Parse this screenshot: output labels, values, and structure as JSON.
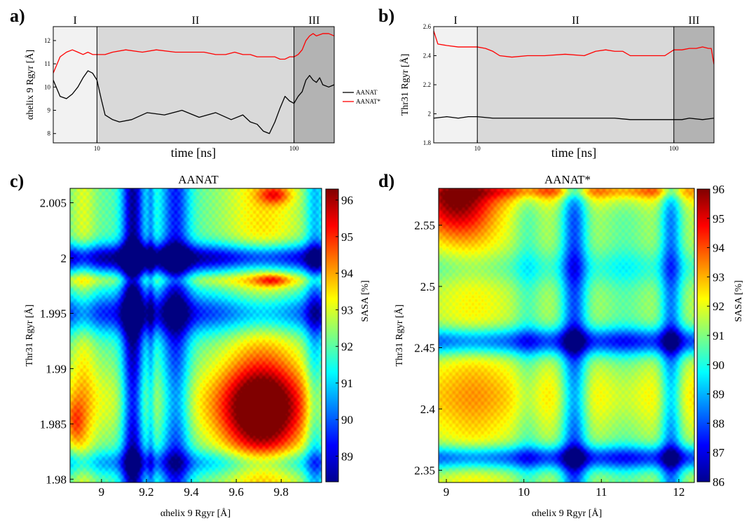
{
  "panels": {
    "a": {
      "letter": "a)"
    },
    "b": {
      "letter": "b)"
    },
    "c": {
      "letter": "c)"
    },
    "d": {
      "letter": "d)"
    }
  },
  "chart_data": [
    {
      "id": "a",
      "type": "line",
      "xlabel": "time [ns]",
      "ylabel": "αhelix 9 Rgyr [Å]",
      "xscale": "log",
      "xlim": [
        6,
        160
      ],
      "ylim": [
        7.6,
        12.6
      ],
      "xticks": [
        10,
        100
      ],
      "yticks": [
        8,
        9,
        10,
        11,
        12
      ],
      "regions": [
        {
          "label": "I",
          "from": 6,
          "to": 10,
          "color": "#f2f2f2"
        },
        {
          "label": "II",
          "from": 10,
          "to": 100,
          "color": "#d9d9d9"
        },
        {
          "label": "III",
          "from": 100,
          "to": 160,
          "color": "#b3b3b3"
        }
      ],
      "legend": {
        "placement": "right",
        "entries": [
          "AANAT",
          "AANAT*"
        ]
      },
      "series": [
        {
          "name": "AANAT",
          "color": "#000000",
          "x": [
            6,
            6.5,
            7,
            7.5,
            8,
            8.5,
            9,
            9.5,
            10,
            10.5,
            11,
            12,
            13,
            15,
            18,
            22,
            27,
            33,
            40,
            48,
            55,
            60,
            65,
            70,
            75,
            80,
            85,
            90,
            95,
            100,
            105,
            110,
            115,
            120,
            125,
            130,
            135,
            140,
            150,
            160
          ],
          "y": [
            10.3,
            9.6,
            9.5,
            9.7,
            10.0,
            10.4,
            10.7,
            10.6,
            10.3,
            9.5,
            8.8,
            8.6,
            8.5,
            8.6,
            8.9,
            8.8,
            9.0,
            8.7,
            8.9,
            8.6,
            8.8,
            8.5,
            8.4,
            8.1,
            8.0,
            8.5,
            9.1,
            9.6,
            9.4,
            9.3,
            9.6,
            9.8,
            10.3,
            10.5,
            10.3,
            10.2,
            10.4,
            10.1,
            10.0,
            10.1
          ]
        },
        {
          "name": "AANAT*",
          "color": "#ff0000",
          "x": [
            6,
            6.5,
            7,
            7.5,
            8,
            8.5,
            9,
            9.5,
            10,
            11,
            12,
            14,
            17,
            20,
            25,
            30,
            35,
            40,
            45,
            50,
            55,
            60,
            65,
            70,
            75,
            80,
            85,
            90,
            95,
            100,
            105,
            110,
            115,
            120,
            125,
            130,
            140,
            150,
            160
          ],
          "y": [
            10.6,
            11.3,
            11.5,
            11.6,
            11.5,
            11.4,
            11.5,
            11.4,
            11.4,
            11.4,
            11.5,
            11.6,
            11.5,
            11.6,
            11.5,
            11.5,
            11.5,
            11.4,
            11.4,
            11.5,
            11.4,
            11.4,
            11.3,
            11.3,
            11.3,
            11.3,
            11.2,
            11.2,
            11.3,
            11.3,
            11.4,
            11.6,
            12.0,
            12.2,
            12.3,
            12.2,
            12.3,
            12.3,
            12.2
          ]
        }
      ]
    },
    {
      "id": "b",
      "type": "line",
      "xlabel": "time [ns]",
      "ylabel": "Thr31 Rgyr [Å]",
      "xscale": "log",
      "xlim": [
        6,
        160
      ],
      "ylim": [
        1.8,
        2.6
      ],
      "xticks": [
        10,
        100
      ],
      "yticks": [
        1.8,
        2,
        2.2,
        2.4,
        2.6
      ],
      "regions": [
        {
          "label": "I",
          "from": 6,
          "to": 10,
          "color": "#f2f2f2"
        },
        {
          "label": "II",
          "from": 10,
          "to": 100,
          "color": "#d9d9d9"
        },
        {
          "label": "III",
          "from": 100,
          "to": 160,
          "color": "#b3b3b3"
        }
      ],
      "series": [
        {
          "name": "AANAT",
          "color": "#000000",
          "x": [
            6,
            7,
            8,
            9,
            10,
            12,
            15,
            20,
            30,
            40,
            50,
            60,
            70,
            80,
            90,
            100,
            110,
            120,
            140,
            160
          ],
          "y": [
            1.97,
            1.98,
            1.97,
            1.98,
            1.98,
            1.97,
            1.97,
            1.97,
            1.97,
            1.97,
            1.97,
            1.96,
            1.96,
            1.96,
            1.96,
            1.96,
            1.96,
            1.97,
            1.96,
            1.97
          ]
        },
        {
          "name": "AANAT*",
          "color": "#ff0000",
          "x": [
            6,
            6.3,
            7,
            8,
            9,
            10,
            11,
            12,
            13,
            15,
            18,
            22,
            28,
            35,
            40,
            45,
            50,
            55,
            60,
            70,
            80,
            90,
            100,
            110,
            120,
            130,
            140,
            150,
            155,
            160
          ],
          "y": [
            2.57,
            2.48,
            2.47,
            2.46,
            2.46,
            2.46,
            2.45,
            2.43,
            2.4,
            2.39,
            2.4,
            2.4,
            2.41,
            2.4,
            2.43,
            2.44,
            2.43,
            2.43,
            2.4,
            2.4,
            2.4,
            2.4,
            2.44,
            2.44,
            2.45,
            2.45,
            2.46,
            2.45,
            2.45,
            2.34
          ]
        }
      ]
    },
    {
      "id": "c",
      "type": "heatmap",
      "title": "AANAT",
      "xlabel": "αhelix 9 Rgyr [Å]",
      "ylabel": "Thr31 Rgyr [Å]",
      "colorbar_label": "SASA [%]",
      "xlim": [
        8.86,
        9.98
      ],
      "ylim": [
        1.9797,
        2.0063
      ],
      "xticks": [
        "9",
        "9.2",
        "9.4",
        "9.6",
        "9.8"
      ],
      "yticks": [
        "1.98",
        "1.985",
        "1.99",
        "1.995",
        "2",
        "2.005"
      ],
      "clim": [
        88.3,
        96.3
      ],
      "cticks": [
        "89",
        "90",
        "91",
        "92",
        "93",
        "94",
        "95",
        "96"
      ],
      "base": 92.0,
      "x_features": [
        {
          "center": 9.14,
          "width": 0.035,
          "amp": -3.5
        },
        {
          "center": 9.33,
          "width": 0.045,
          "amp": -2.5
        },
        {
          "center": 9.22,
          "width": 0.012,
          "amp": -1.2
        },
        {
          "center": 9.95,
          "width": 0.03,
          "amp": -1.5
        },
        {
          "center": 8.92,
          "width": 0.04,
          "amp": 1.0
        },
        {
          "center": 9.72,
          "width": 0.13,
          "amp": 1.5
        }
      ],
      "y_features": [
        {
          "center": 2.0,
          "width": 0.0009,
          "amp": -3.5
        },
        {
          "center": 1.995,
          "width": 0.0013,
          "amp": -2.5
        },
        {
          "center": 1.9815,
          "width": 0.0008,
          "amp": -1.5
        },
        {
          "center": 1.987,
          "width": 0.0025,
          "amp": 1.0
        },
        {
          "center": 1.998,
          "width": 0.0004,
          "amp": 0.8
        }
      ],
      "hotspots": [
        {
          "x": 9.71,
          "y": 1.9862,
          "wx": 0.13,
          "wy": 0.0028,
          "amp": 3.5
        },
        {
          "x": 9.77,
          "y": 2.0057,
          "wx": 0.05,
          "wy": 0.0006,
          "amp": 2.0
        },
        {
          "x": 9.76,
          "y": 1.998,
          "wx": 0.05,
          "wy": 0.0004,
          "amp": 1.5
        },
        {
          "x": 8.88,
          "y": 1.985,
          "wx": 0.03,
          "wy": 0.0015,
          "amp": 1.5
        }
      ]
    },
    {
      "id": "d",
      "type": "heatmap",
      "title": "AANAT*",
      "xlabel": "αhelix 9 Rgyr [Å]",
      "ylabel": "Thr31 Rgyr [Å]",
      "colorbar_label": "SASA [%]",
      "xlim": [
        8.9,
        12.2
      ],
      "ylim": [
        2.34,
        2.58
      ],
      "xticks": [
        "9",
        "10",
        "11",
        "12"
      ],
      "yticks": [
        "2.35",
        "2.4",
        "2.45",
        "2.5",
        "2.55"
      ],
      "clim": [
        86,
        96
      ],
      "cticks": [
        "86",
        "87",
        "88",
        "89",
        "90",
        "91",
        "92",
        "93",
        "94",
        "95",
        "96"
      ],
      "base": 91.5,
      "x_features": [
        {
          "center": 10.65,
          "width": 0.12,
          "amp": -3.5
        },
        {
          "center": 11.9,
          "width": 0.1,
          "amp": -3.0
        },
        {
          "center": 10.05,
          "width": 0.12,
          "amp": -1.0
        },
        {
          "center": 11.3,
          "width": 0.2,
          "amp": -0.8
        },
        {
          "center": 9.35,
          "width": 0.3,
          "amp": 0.8
        }
      ],
      "y_features": [
        {
          "center": 2.455,
          "width": 0.008,
          "amp": -3.5
        },
        {
          "center": 2.36,
          "width": 0.007,
          "amp": -3.5
        },
        {
          "center": 2.515,
          "width": 0.01,
          "amp": -1.0
        },
        {
          "center": 2.41,
          "width": 0.018,
          "amp": 1.0
        },
        {
          "center": 2.575,
          "width": 0.008,
          "amp": 1.0
        }
      ],
      "hotspots": [
        {
          "x": 9.1,
          "y": 2.565,
          "wx": 0.35,
          "wy": 0.018,
          "amp": 3.5
        },
        {
          "x": 10.4,
          "y": 2.578,
          "wx": 0.9,
          "wy": 0.004,
          "amp": 1.8
        },
        {
          "x": 11.8,
          "y": 2.578,
          "wx": 0.3,
          "wy": 0.004,
          "amp": 1.2
        }
      ]
    }
  ]
}
